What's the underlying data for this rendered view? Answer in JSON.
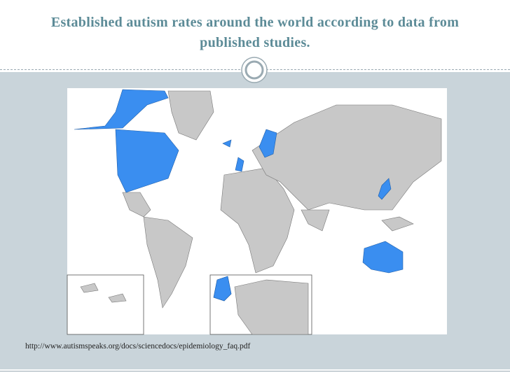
{
  "header": {
    "title": "Established autism rates around the world according to data from published studies."
  },
  "footer": {
    "source": "http://www.autismspeaks.org/docs/sciencedocs/epidemiology_faq.pdf"
  }
}
